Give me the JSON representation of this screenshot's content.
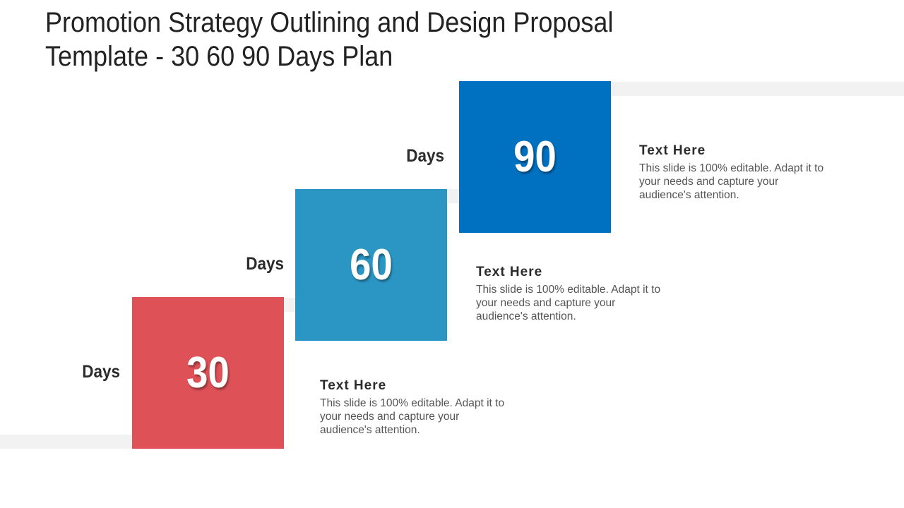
{
  "title": {
    "line1": "Promotion Strategy Outlining and Design Proposal",
    "line2": "Template - 30 60 90 Days Plan"
  },
  "steps": [
    {
      "number": "30",
      "days_label": "Days",
      "color": "#de5157",
      "heading": "Text Here",
      "body": "This slide is 100% editable. Adapt it to your needs and capture your audience's attention."
    },
    {
      "number": "60",
      "days_label": "Days",
      "color": "#2b96c4",
      "heading": "Text Here",
      "body": "This slide is 100% editable. Adapt it to your needs and capture your audience's attention."
    },
    {
      "number": "90",
      "days_label": "Days",
      "color": "#0070c0",
      "heading": "Text Here",
      "body": "This slide is 100% editable. Adapt it to your needs and capture your audience's attention."
    }
  ]
}
